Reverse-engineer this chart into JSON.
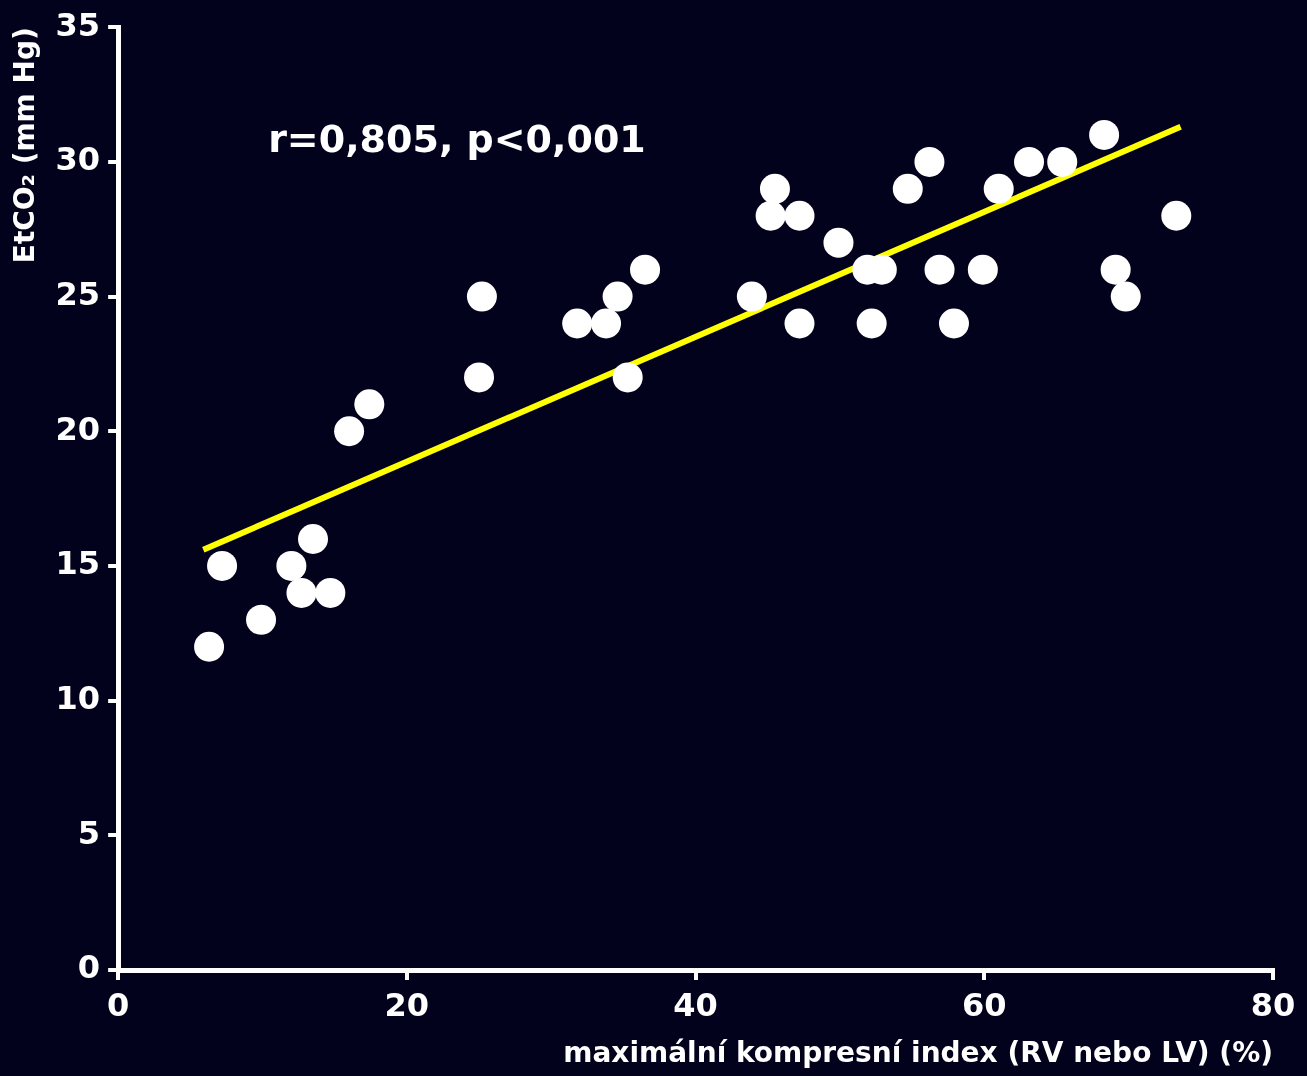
{
  "chart_data": {
    "type": "scatter",
    "xlabel": "maximální kompresní index (RV nebo LV) (%)",
    "ylabel": "EtCO₂ (mm Hg)",
    "xlim": [
      0,
      80
    ],
    "xticks": [
      0,
      20,
      40,
      60,
      80
    ],
    "ylim": [
      0,
      35
    ],
    "yticks": [
      0,
      5,
      10,
      15,
      20,
      25,
      30,
      35
    ],
    "grid": false,
    "legend": false,
    "marker": "circle",
    "annotations": [
      "r=0,805, p<0,001"
    ],
    "series": [
      {
        "color": "#ffffff",
        "x": [
          6.3,
          7.2,
          9.9,
          12.0,
          12.7,
          13.5,
          14.7,
          16.0,
          17.4,
          25.0,
          25.2,
          31.8,
          33.8,
          34.6,
          35.3,
          36.5,
          43.9,
          45.5,
          45.2,
          47.2,
          47.2,
          49.9,
          51.9,
          52.9,
          52.2,
          54.7,
          56.2,
          56.9,
          57.9,
          59.9,
          61.0,
          63.1,
          65.4,
          68.3,
          69.1,
          69.8,
          73.3
        ],
        "values": [
          12,
          15,
          13,
          15,
          14,
          16,
          14,
          20,
          21,
          22,
          25,
          24,
          24,
          25,
          22,
          26,
          25,
          29,
          28,
          28,
          24,
          27,
          26,
          26,
          24,
          29,
          30,
          26,
          24,
          26,
          29,
          30,
          30,
          31,
          26,
          25,
          28
        ]
      },
      {
        "type": "line",
        "color": "#ffff00",
        "marker": "none",
        "line_style": "solid",
        "x": [
          5.9,
          73.6
        ],
        "values": [
          15.6,
          31.3
        ]
      }
    ]
  }
}
